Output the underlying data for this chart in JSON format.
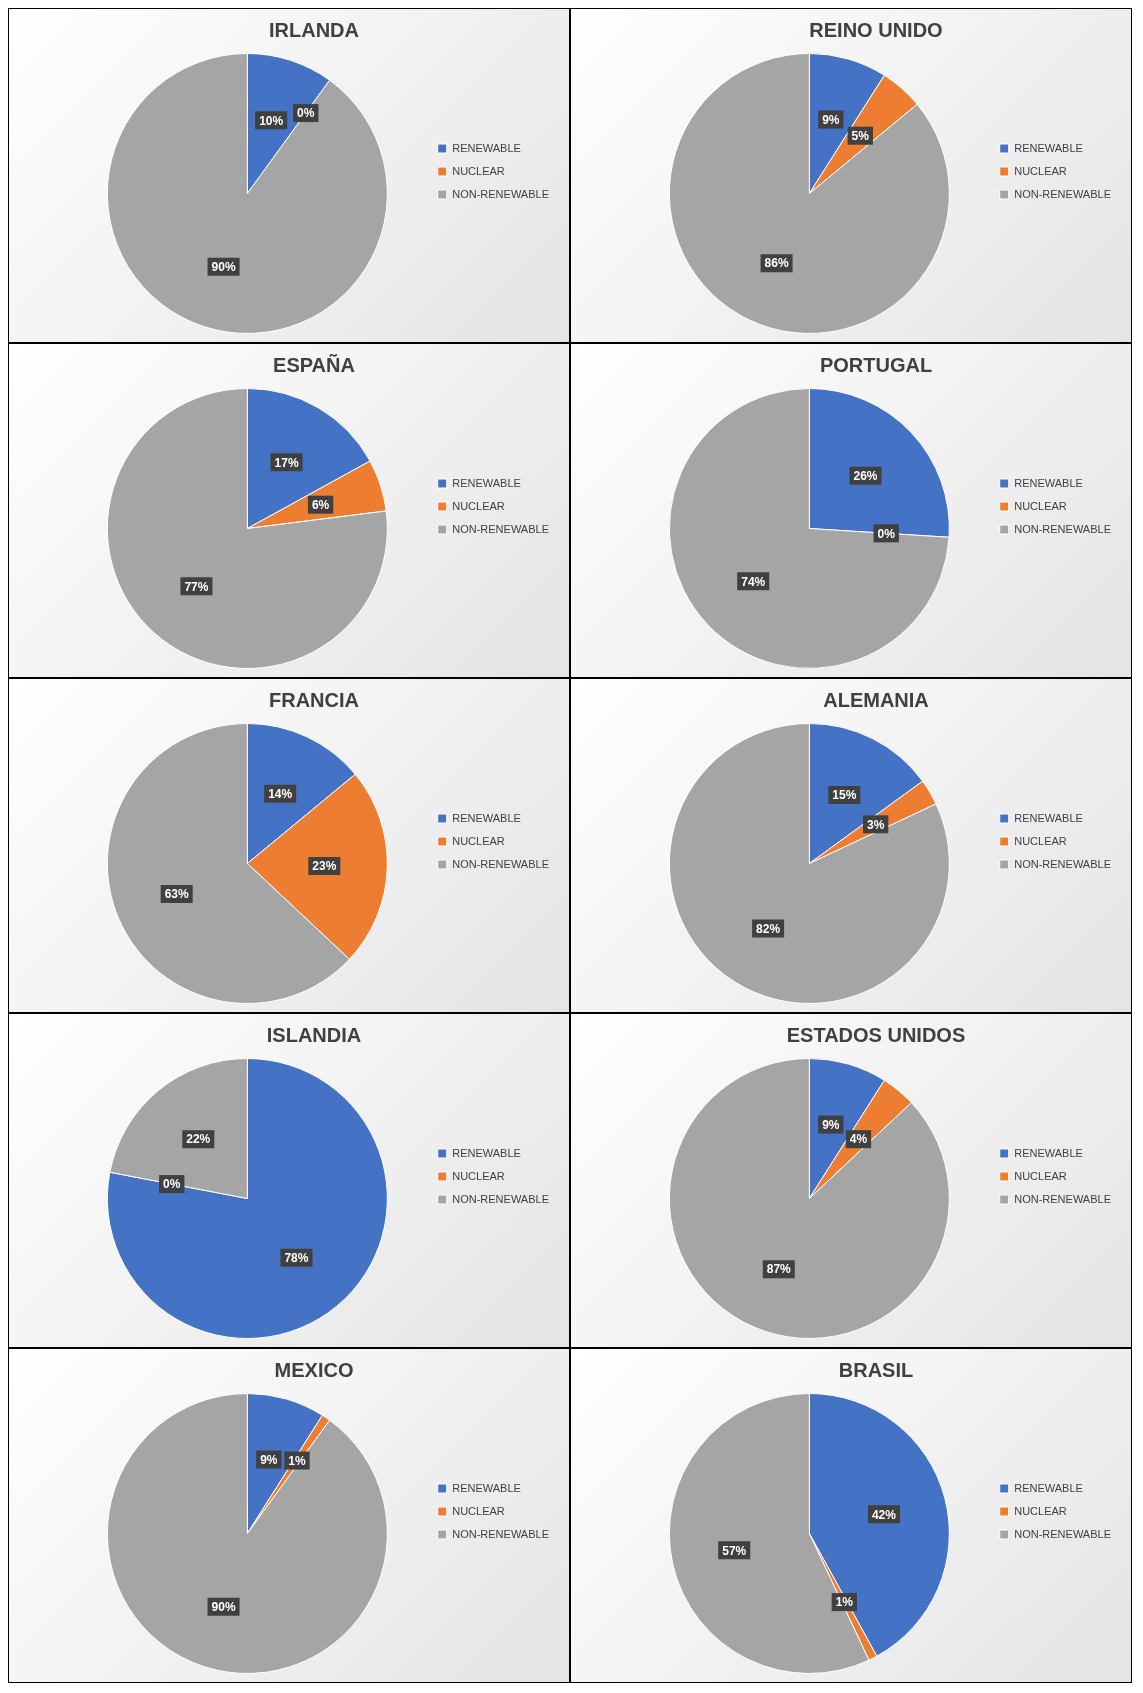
{
  "chart_data": [
    {
      "type": "pie",
      "title": "IRLANDA",
      "categories": [
        "RENEWABLE",
        "NUCLEAR",
        "NON-RENEWABLE"
      ],
      "values": [
        10,
        0,
        90
      ],
      "value_labels": [
        "10%",
        "0%",
        "90%"
      ],
      "colors": [
        "#4472c4",
        "#ed7d31",
        "#a5a5a5"
      ],
      "legend": "right"
    },
    {
      "type": "pie",
      "title": "REINO UNIDO",
      "categories": [
        "RENEWABLE",
        "NUCLEAR",
        "NON-RENEWABLE"
      ],
      "values": [
        9,
        5,
        86
      ],
      "value_labels": [
        "9%",
        "5%",
        "86%"
      ],
      "colors": [
        "#4472c4",
        "#ed7d31",
        "#a5a5a5"
      ],
      "legend": "right"
    },
    {
      "type": "pie",
      "title": "ESPAÑA",
      "categories": [
        "RENEWABLE",
        "NUCLEAR",
        "NON-RENEWABLE"
      ],
      "values": [
        17,
        6,
        77
      ],
      "value_labels": [
        "17%",
        "6%",
        "77%"
      ],
      "colors": [
        "#4472c4",
        "#ed7d31",
        "#a5a5a5"
      ],
      "legend": "right"
    },
    {
      "type": "pie",
      "title": "PORTUGAL",
      "categories": [
        "RENEWABLE",
        "NUCLEAR",
        "NON-RENEWABLE"
      ],
      "values": [
        26,
        0,
        74
      ],
      "value_labels": [
        "26%",
        "0%",
        "74%"
      ],
      "colors": [
        "#4472c4",
        "#ed7d31",
        "#a5a5a5"
      ],
      "legend": "right"
    },
    {
      "type": "pie",
      "title": "FRANCIA",
      "categories": [
        "RENEWABLE",
        "NUCLEAR",
        "NON-RENEWABLE"
      ],
      "values": [
        14,
        23,
        63
      ],
      "value_labels": [
        "14%",
        "23%",
        "63%"
      ],
      "colors": [
        "#4472c4",
        "#ed7d31",
        "#a5a5a5"
      ],
      "legend": "right"
    },
    {
      "type": "pie",
      "title": "ALEMANIA",
      "categories": [
        "RENEWABLE",
        "NUCLEAR",
        "NON-RENEWABLE"
      ],
      "values": [
        15,
        3,
        82
      ],
      "value_labels": [
        "15%",
        "3%",
        "82%"
      ],
      "colors": [
        "#4472c4",
        "#ed7d31",
        "#a5a5a5"
      ],
      "legend": "right"
    },
    {
      "type": "pie",
      "title": "ISLANDIA",
      "categories": [
        "RENEWABLE",
        "NUCLEAR",
        "NON-RENEWABLE"
      ],
      "values": [
        78,
        0,
        22
      ],
      "value_labels": [
        "78%",
        "0%",
        "22%"
      ],
      "colors": [
        "#4472c4",
        "#ed7d31",
        "#a5a5a5"
      ],
      "legend": "right"
    },
    {
      "type": "pie",
      "title": "ESTADOS UNIDOS",
      "categories": [
        "RENEWABLE",
        "NUCLEAR",
        "NON-RENEWABLE"
      ],
      "values": [
        9,
        4,
        87
      ],
      "value_labels": [
        "9%",
        "4%",
        "87%"
      ],
      "colors": [
        "#4472c4",
        "#ed7d31",
        "#a5a5a5"
      ],
      "legend": "right"
    },
    {
      "type": "pie",
      "title": "MEXICO",
      "categories": [
        "RENEWABLE",
        "NUCLEAR",
        "NON-RENEWABLE"
      ],
      "values": [
        9,
        1,
        90
      ],
      "value_labels": [
        "9%",
        "1%",
        "90%"
      ],
      "colors": [
        "#4472c4",
        "#ed7d31",
        "#a5a5a5"
      ],
      "legend": "right"
    },
    {
      "type": "pie",
      "title": "BRASIL",
      "categories": [
        "RENEWABLE",
        "NUCLEAR",
        "NON-RENEWABLE"
      ],
      "values": [
        42,
        1,
        57
      ],
      "value_labels": [
        "42%",
        "1%",
        "57%"
      ],
      "colors": [
        "#4472c4",
        "#ed7d31",
        "#a5a5a5"
      ],
      "legend": "right"
    }
  ]
}
